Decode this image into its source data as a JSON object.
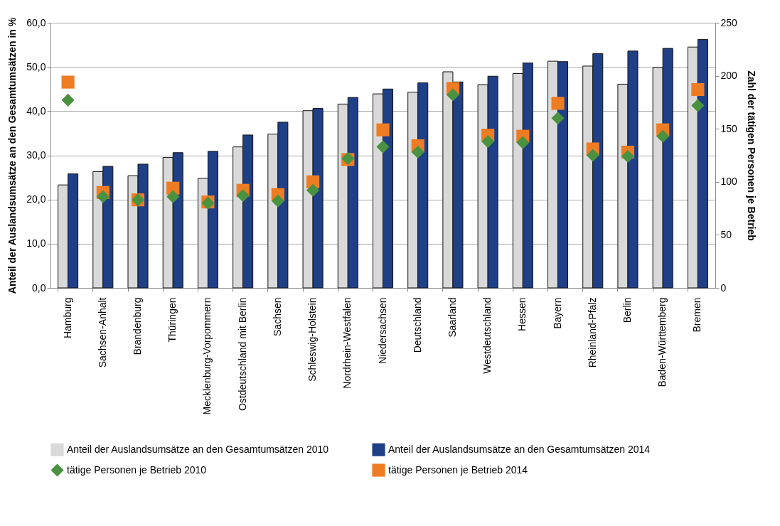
{
  "chart_data": {
    "type": "bar",
    "ylabel": "Anteil der Auslandsumsätze an den Gesamtumsätzen in %",
    "y2label": "Zahl der tätigen Personen je Betrieb",
    "categories": [
      "Hamburg",
      "Sachsen-Anhalt",
      "Brandenburg",
      "Thüringen",
      "Mecklenburg-Vorpommern",
      "Ostdeutschland mit Berlin",
      "Sachsen",
      "Schleswig-Holstein",
      "Nordrhein-Westfalen",
      "Niedersachsen",
      "Deutschland",
      "Saarland",
      "Westdeutschland",
      "Hessen",
      "Bayern",
      "Rheinland-Pfalz",
      "Berlin",
      "Baden-Württemberg",
      "Bremen"
    ],
    "series": [
      {
        "name": "Anteil der Auslandsumsätze an den Gesamtumsätzen 2010",
        "color": "#d9d9d9",
        "values": [
          23.3,
          26.3,
          25.4,
          29.5,
          24.8,
          31.9,
          34.8,
          40.1,
          41.6,
          43.9,
          44.3,
          48.9,
          46.0,
          48.5,
          51.3,
          50.2,
          46.1,
          49.9,
          54.5
        ]
      },
      {
        "name": "Anteil der Auslandsumsätze an den Gesamtumsätzen 2014",
        "color": "#1f3f87",
        "values": [
          25.8,
          27.5,
          28.0,
          30.6,
          30.9,
          34.6,
          37.5,
          40.6,
          43.1,
          45.0,
          46.4,
          46.6,
          47.9,
          50.9,
          51.2,
          53.0,
          53.6,
          54.2,
          56.2
        ]
      },
      {
        "name": "tätige Personen je Betrieb 2010",
        "type": "scatter",
        "axis": "y2",
        "marker": "diamond",
        "color": "#4a9140",
        "values": [
          177,
          86,
          83,
          86,
          80,
          87,
          82,
          92,
          122,
          133,
          128,
          182,
          138,
          137,
          160,
          125,
          124,
          143,
          172
        ]
      },
      {
        "name": "tätige Personen je Betrieb 2014",
        "type": "scatter",
        "axis": "y2",
        "marker": "square",
        "color": "#ee7c22",
        "values": [
          194,
          90,
          83,
          94,
          81,
          92,
          88,
          100,
          121,
          149,
          134,
          188,
          144,
          143,
          174,
          131,
          128,
          149,
          187
        ]
      }
    ],
    "ylim": [
      0,
      60
    ],
    "yticks": [
      {
        "value": 0,
        "label": "0,0"
      },
      {
        "value": 10,
        "label": "10,0"
      },
      {
        "value": 20,
        "label": "20,0"
      },
      {
        "value": 30,
        "label": "30,0"
      },
      {
        "value": 40,
        "label": "40,0"
      },
      {
        "value": 50,
        "label": "50,0"
      },
      {
        "value": 60,
        "label": "60,0"
      }
    ],
    "y2lim": [
      0,
      250
    ],
    "y2ticks": [
      0,
      50,
      100,
      150,
      200,
      250
    ],
    "grid": "y",
    "legend": "bottom"
  }
}
